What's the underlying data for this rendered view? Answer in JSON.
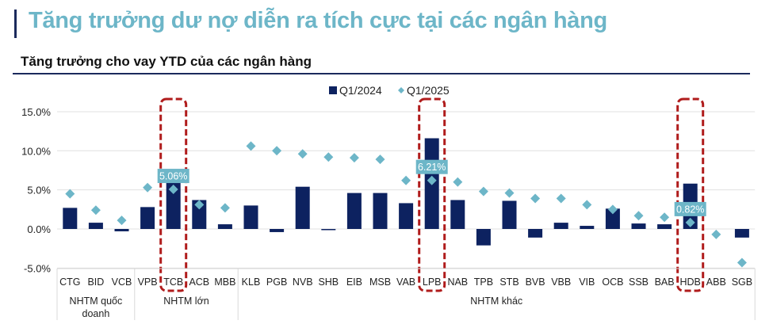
{
  "header": {
    "title": "Tăng trưởng dư nợ diễn ra tích cực tại các ngân hàng",
    "subtitle": "Tăng trưởng cho vay YTD của các ngân hàng"
  },
  "colors": {
    "bar": "#0d2260",
    "diamond": "#6db6c8",
    "highlight": "#b01c1c",
    "title": "#6db6c8"
  },
  "chart_data": {
    "type": "bar",
    "title": "Tăng trưởng cho vay YTD của các ngân hàng",
    "xlabel": "",
    "ylabel": "",
    "ylim": [
      -5,
      15
    ],
    "yticks": [
      "15.0%",
      "10.0%",
      "5.0%",
      "0.0%",
      "-5.0%"
    ],
    "grid": true,
    "legend_position": "top",
    "categories": [
      "CTG",
      "BID",
      "VCB",
      "VPB",
      "TCB",
      "ACB",
      "MBB",
      "KLB",
      "PGB",
      "NVB",
      "SHB",
      "EIB",
      "MSB",
      "VAB",
      "LPB",
      "NAB",
      "TPB",
      "STB",
      "BVB",
      "VBB",
      "VIB",
      "OCB",
      "SSB",
      "BAB",
      "HDB",
      "ABB",
      "SGB"
    ],
    "groups": [
      {
        "label": "NHTM quốc doanh",
        "label_lines": [
          "NHTM quốc",
          "doanh"
        ],
        "start": 0,
        "end": 2
      },
      {
        "label": "NHTM lớn",
        "label_lines": [
          "NHTM lớn"
        ],
        "start": 3,
        "end": 6
      },
      {
        "label": "NHTM khác",
        "label_lines": [
          "NHTM khác"
        ],
        "start": 7,
        "end": 26
      }
    ],
    "series": [
      {
        "name": "Q1/2024",
        "type": "bar",
        "values": [
          2.7,
          0.8,
          -0.3,
          2.8,
          6.5,
          3.7,
          0.6,
          3.0,
          -0.4,
          5.4,
          -0.1,
          4.6,
          4.6,
          3.3,
          11.6,
          3.7,
          -2.1,
          3.6,
          -1.1,
          0.8,
          0.4,
          2.6,
          0.7,
          0.6,
          5.8,
          0.0,
          -1.1
        ]
      },
      {
        "name": "Q1/2025",
        "type": "scatter-diamond",
        "values": [
          4.5,
          2.4,
          1.1,
          5.3,
          5.06,
          3.1,
          2.7,
          10.6,
          10.0,
          9.6,
          9.2,
          9.1,
          8.9,
          6.2,
          6.21,
          6.0,
          4.8,
          4.6,
          3.9,
          3.9,
          3.1,
          2.5,
          1.7,
          1.5,
          0.82,
          -0.7,
          -4.3
        ]
      }
    ],
    "annotations": [
      {
        "category": "TCB",
        "text": "5.06%",
        "highlighted": true
      },
      {
        "category": "LPB",
        "text": "6.21%",
        "highlighted": true
      },
      {
        "category": "HDB",
        "text": "0.82%",
        "highlighted": true
      }
    ]
  }
}
